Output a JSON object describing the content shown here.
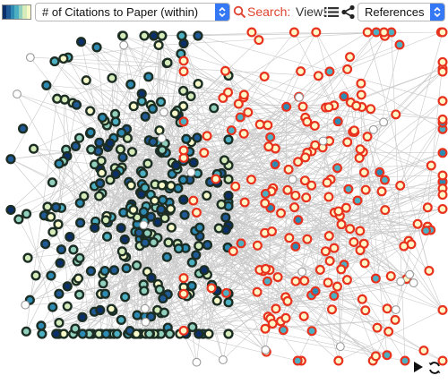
{
  "toolbar": {
    "color_scale": [
      "#0b2f6b",
      "#1f5a96",
      "#2d8ab3",
      "#4db0c2",
      "#92d0be",
      "#d5ecba",
      "#f7f9c9"
    ],
    "metric_select": {
      "value": "# of Citations to Paper (within)"
    },
    "search_label": "Search:",
    "view_label": "View:",
    "view_select": {
      "value": "References"
    }
  },
  "icons": {
    "metric_dropdown": "chevron-updown-icon",
    "search": "magnifier-icon",
    "list": "list-icon",
    "share": "share-icon",
    "view_dropdown": "chevron-updown-icon",
    "play": "play-icon",
    "refresh": "refresh-icon"
  },
  "graph": {
    "colors": {
      "edge": "#c9c9c9",
      "citation_ring": "#e8321e",
      "citation_fill": "#fff7c6",
      "cluster_ring": "#1c2e24",
      "neutral_ring": "#9a9a9a",
      "fills": [
        "#0b2f6b",
        "#1f5a96",
        "#2d8ab3",
        "#4db0c2",
        "#92d0be",
        "#d5ecba",
        "#f7f9c9",
        "#ffffff"
      ]
    }
  }
}
